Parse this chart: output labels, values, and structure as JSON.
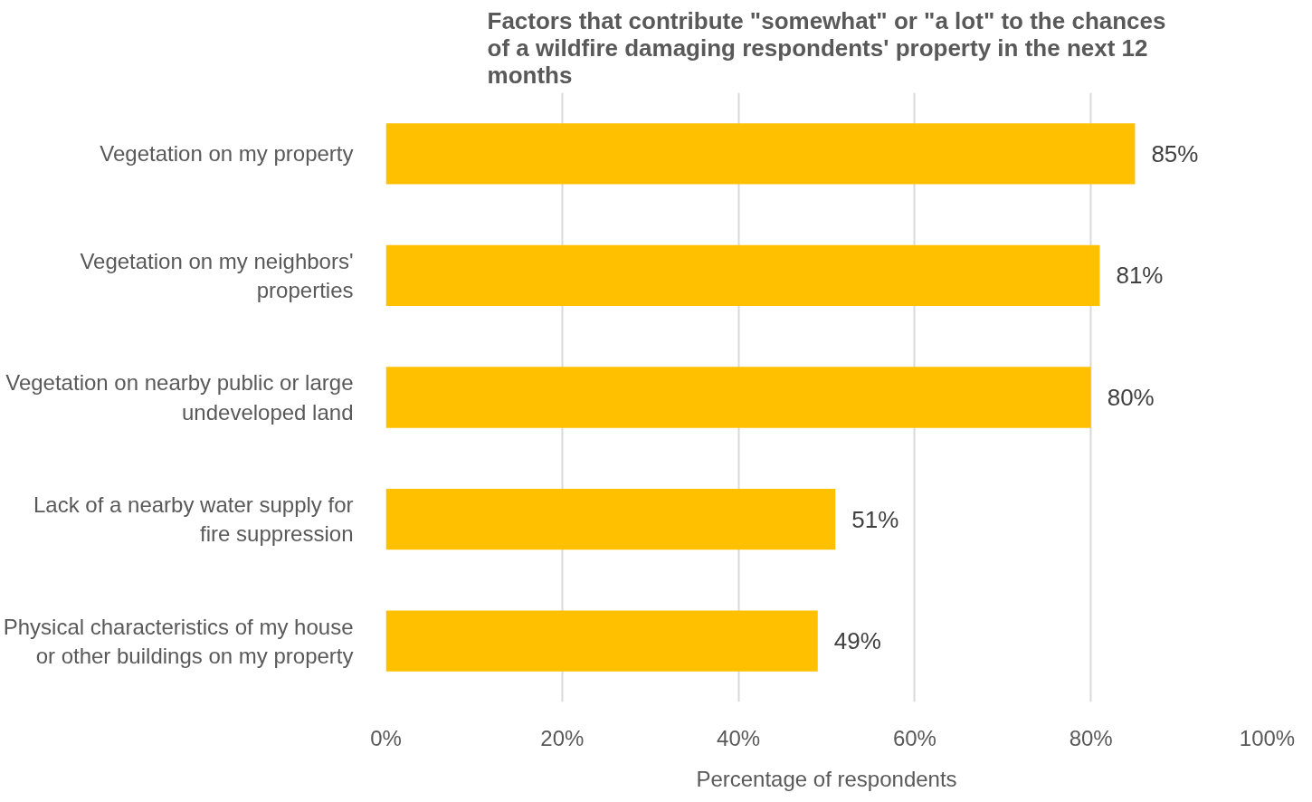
{
  "chart_data": {
    "type": "bar",
    "orientation": "horizontal",
    "title": "Factors that contribute \"somewhat\" or \"a lot\" to the chances of a wildfire damaging respondents' property in the next 12 months",
    "xlabel": "Percentage of respondents",
    "categories": [
      "Vegetation on my property",
      "Vegetation on my neighbors' properties",
      "Vegetation on nearby public or large undeveloped land",
      "Lack of a nearby water supply for fire suppression",
      "Physical characteristics of my house or other buildings on my property"
    ],
    "values": [
      85,
      81,
      80,
      51,
      49
    ],
    "value_labels": [
      "85%",
      "81%",
      "80%",
      "51%",
      "49%"
    ],
    "color": "#ffc000",
    "xlim": [
      0,
      100
    ],
    "xticks": [
      {
        "value": 0,
        "label": "0%"
      },
      {
        "value": 20,
        "label": "20%"
      },
      {
        "value": 40,
        "label": "40%"
      },
      {
        "value": 60,
        "label": "60%"
      },
      {
        "value": 80,
        "label": "80%"
      },
      {
        "value": 100,
        "label": "100%"
      }
    ],
    "grid": "x"
  }
}
